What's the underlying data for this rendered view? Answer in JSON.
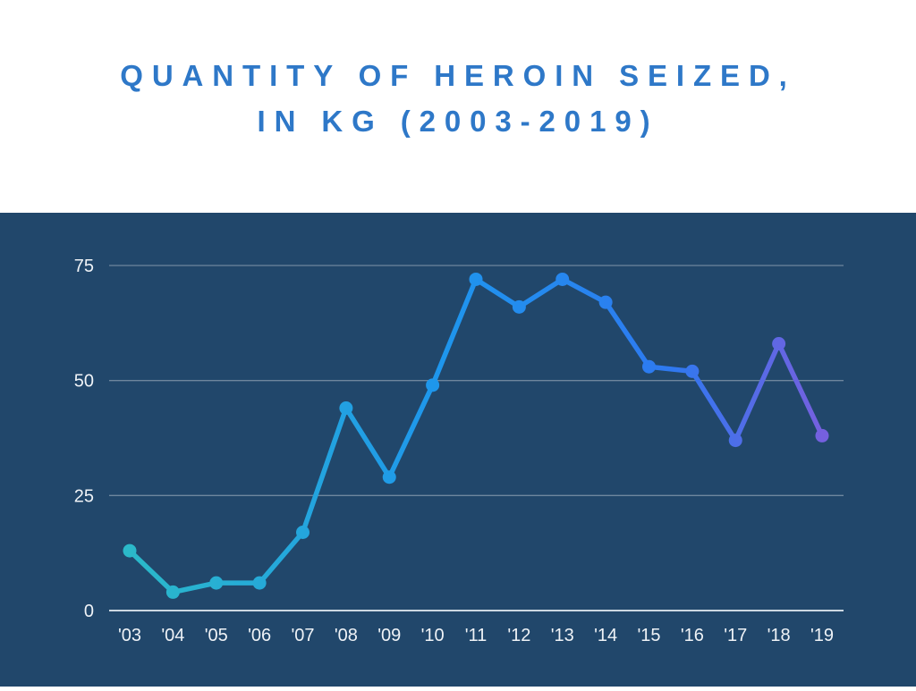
{
  "title": {
    "line1": "QUANTITY OF HEROIN SEIZED,",
    "line2": "IN KG (2003-2019)"
  },
  "colors": {
    "title": "#2E78C8",
    "page_bg": "#FFFFFF",
    "panel_bg": "#21476B",
    "grid": "rgba(255,255,255,0.35)",
    "axis": "#CDD8E2",
    "tick_text": "#EFF3F7",
    "line_gradient": [
      "#2BB9C9",
      "#1E96ED",
      "#2E79F0",
      "#7560DF"
    ]
  },
  "chart_data": {
    "type": "line",
    "title": "Quantity of heroin seized, in kg (2003-2019)",
    "x": [
      "'03",
      "'04",
      "'05",
      "'06",
      "'07",
      "'08",
      "'09",
      "'10",
      "'11",
      "'12",
      "'13",
      "'14",
      "'15",
      "'16",
      "'17",
      "'18",
      "'19"
    ],
    "values": [
      13,
      4,
      6,
      6,
      17,
      44,
      29,
      49,
      72,
      66,
      72,
      67,
      53,
      52,
      37,
      58,
      38
    ],
    "xlabel": "",
    "ylabel": "",
    "ylim": [
      0,
      80
    ],
    "yticks": [
      0,
      25,
      50,
      75
    ],
    "grid": true,
    "legend": false
  }
}
